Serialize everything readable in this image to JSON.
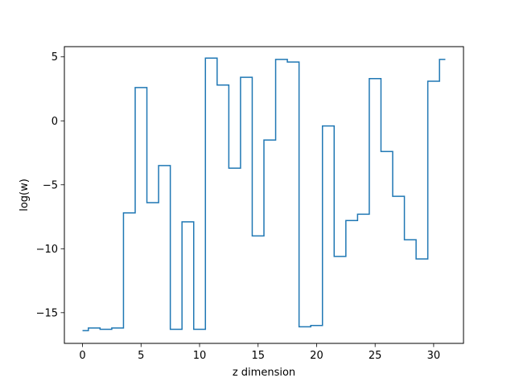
{
  "chart_data": {
    "type": "line",
    "drawstyle": "steps-mid",
    "title": "",
    "xlabel": "z dimension",
    "ylabel": "log(w)",
    "xlim": [
      -1.55,
      32.55
    ],
    "ylim": [
      -17.4,
      5.8
    ],
    "xticks": [
      0,
      5,
      10,
      15,
      20,
      25,
      30
    ],
    "xtick_labels": [
      "0",
      "5",
      "10",
      "15",
      "20",
      "25",
      "30"
    ],
    "yticks": [
      -15,
      -10,
      -5,
      0,
      5
    ],
    "ytick_labels": [
      "−15",
      "−10",
      "−5",
      "0",
      "5"
    ],
    "grid": false,
    "series": [
      {
        "color": "#1f77b4",
        "x": [
          0,
          1,
          2,
          3,
          4,
          5,
          6,
          7,
          8,
          9,
          10,
          11,
          12,
          13,
          14,
          15,
          16,
          17,
          18,
          19,
          20,
          21,
          22,
          23,
          24,
          25,
          26,
          27,
          28,
          29,
          30,
          31
        ],
        "values": [
          -16.4,
          -16.2,
          -16.3,
          -16.2,
          -7.2,
          2.6,
          -6.4,
          -3.5,
          -16.3,
          -7.9,
          -16.3,
          4.9,
          2.8,
          -3.7,
          3.4,
          -9.0,
          -1.5,
          4.8,
          4.6,
          -16.1,
          -16.0,
          -0.4,
          -10.6,
          -7.8,
          -7.3,
          3.3,
          -2.4,
          -5.9,
          -9.3,
          -10.8,
          3.1,
          4.8
        ]
      }
    ]
  }
}
